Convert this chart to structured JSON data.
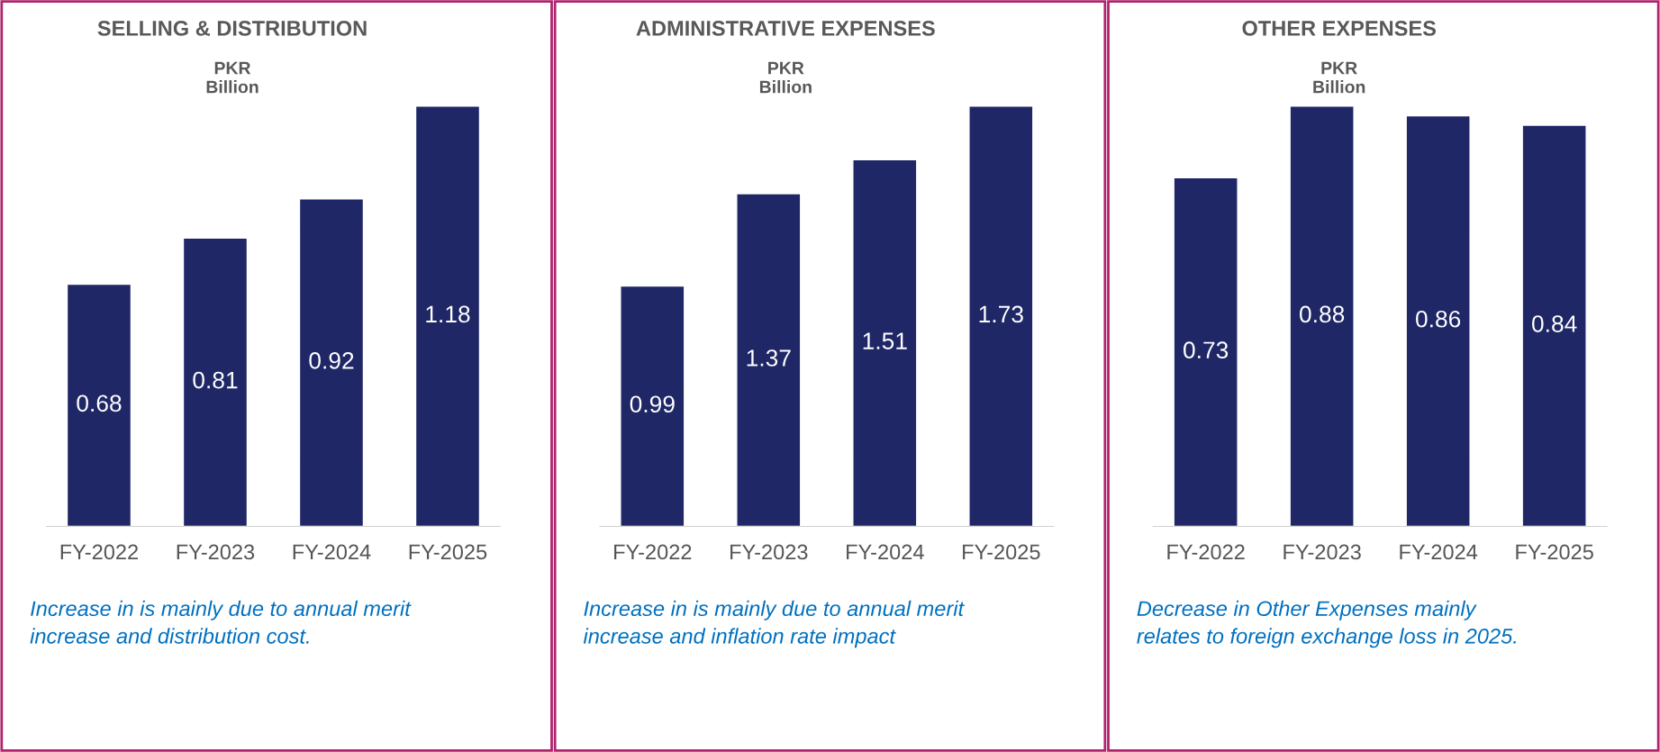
{
  "chart_data": [
    {
      "type": "bar",
      "title": "SELLING & DISTRIBUTION",
      "subtitle": "PKR\nBillion",
      "categories": [
        "FY-2022",
        "FY-2023",
        "FY-2024",
        "FY-2025"
      ],
      "values": [
        0.68,
        0.81,
        0.92,
        1.18
      ],
      "color": "#1f2766",
      "data_labels": true,
      "annotations": [
        "Increase in is mainly due to annual merit\nincrease and distribution cost."
      ]
    },
    {
      "type": "bar",
      "title": "ADMINISTRATIVE EXPENSES",
      "subtitle": "PKR\nBillion",
      "categories": [
        "FY-2022",
        "FY-2023",
        "FY-2024",
        "FY-2025"
      ],
      "values": [
        0.99,
        1.37,
        1.51,
        1.73
      ],
      "color": "#1f2766",
      "data_labels": true,
      "annotations": [
        "Increase in is mainly due to annual merit\nincrease and inflation rate impact"
      ]
    },
    {
      "type": "bar",
      "title": "OTHER EXPENSES",
      "subtitle": "PKR\nBillion",
      "categories": [
        "FY-2022",
        "FY-2023",
        "FY-2024",
        "FY-2025"
      ],
      "values": [
        0.73,
        0.88,
        0.86,
        0.84
      ],
      "color": "#1f2766",
      "data_labels": true,
      "annotations": [
        "Decrease in Other Expenses mainly\nrelates to foreign exchange loss in 2025."
      ]
    }
  ]
}
